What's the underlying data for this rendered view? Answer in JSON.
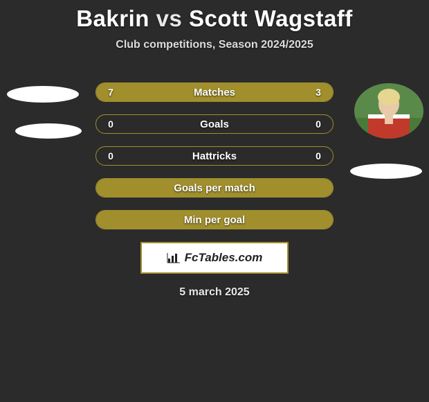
{
  "title": {
    "player1": "Bakrin",
    "vs": "vs",
    "player2": "Scott Wagstaff"
  },
  "subtitle": "Club competitions, Season 2024/2025",
  "colors": {
    "bar_fill": "#a08f2c",
    "bar_border": "#a08f2c",
    "bar_bg": "#2b2b2b",
    "badge_border": "#a08f2c",
    "text": "#ffffff",
    "background": "#2b2b2b"
  },
  "bars": [
    {
      "label": "Matches",
      "left_val": "7",
      "right_val": "3",
      "left_pct": 70,
      "right_pct": 30,
      "show_vals": true
    },
    {
      "label": "Goals",
      "left_val": "0",
      "right_val": "0",
      "left_pct": 0,
      "right_pct": 0,
      "show_vals": true
    },
    {
      "label": "Hattricks",
      "left_val": "0",
      "right_val": "0",
      "left_pct": 0,
      "right_pct": 0,
      "show_vals": true
    },
    {
      "label": "Goals per match",
      "left_val": "",
      "right_val": "",
      "left_pct": 100,
      "right_pct": 0,
      "show_vals": false
    },
    {
      "label": "Min per goal",
      "left_val": "",
      "right_val": "",
      "left_pct": 100,
      "right_pct": 0,
      "show_vals": false
    }
  ],
  "badge": {
    "icon_name": "barchart-icon",
    "text": "FcTables.com"
  },
  "date": "5 march 2025",
  "avatars": {
    "right": {
      "shirt_color": "#c0392b",
      "shirt_accent": "#ffffff",
      "hair_color": "#e6d690",
      "skin_color": "#e8c9a8",
      "field_color": "#4a7a3a"
    }
  }
}
